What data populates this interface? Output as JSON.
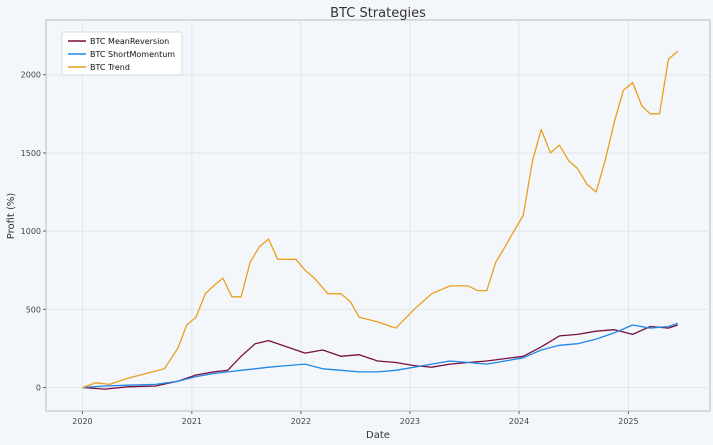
{
  "chart_data": {
    "type": "line",
    "title": "BTC Strategies",
    "xlabel": "Date",
    "ylabel": "Profit (%)",
    "xlim": [
      "2019-09-01",
      "2025-10-01"
    ],
    "ylim": [
      -150,
      2350
    ],
    "x_ticks": [
      "2020",
      "2021",
      "2022",
      "2023",
      "2024",
      "2025"
    ],
    "y_ticks": [
      0,
      500,
      1000,
      1500,
      2000
    ],
    "grid": true,
    "legend_position": "top-left",
    "series": [
      {
        "name": "BTC MeanReversion",
        "color": "#7a0f3f",
        "x": [
          "2020-01-01",
          "2020-03-15",
          "2020-06-01",
          "2020-09-01",
          "2020-11-15",
          "2021-01-15",
          "2021-03-15",
          "2021-05-01",
          "2021-06-15",
          "2021-08-01",
          "2021-09-15",
          "2021-11-15",
          "2022-01-15",
          "2022-03-15",
          "2022-05-15",
          "2022-07-15",
          "2022-09-15",
          "2022-11-15",
          "2023-01-15",
          "2023-03-15",
          "2023-05-15",
          "2023-07-15",
          "2023-09-15",
          "2023-11-15",
          "2024-01-15",
          "2024-03-15",
          "2024-05-15",
          "2024-07-15",
          "2024-09-15",
          "2024-11-15",
          "2025-01-15",
          "2025-03-15",
          "2025-05-15",
          "2025-06-15"
        ],
        "y": [
          0,
          -10,
          5,
          10,
          40,
          80,
          100,
          110,
          200,
          280,
          300,
          260,
          220,
          240,
          200,
          210,
          170,
          160,
          140,
          130,
          150,
          160,
          170,
          185,
          200,
          260,
          330,
          340,
          360,
          370,
          340,
          390,
          380,
          400
        ]
      },
      {
        "name": "BTC ShortMomentum",
        "color": "#1f88e5",
        "x": [
          "2020-01-01",
          "2020-03-15",
          "2020-06-01",
          "2020-09-01",
          "2020-11-15",
          "2021-01-15",
          "2021-03-15",
          "2021-05-01",
          "2021-06-15",
          "2021-08-01",
          "2021-09-15",
          "2021-11-15",
          "2022-01-15",
          "2022-03-15",
          "2022-05-15",
          "2022-07-15",
          "2022-09-15",
          "2022-11-15",
          "2023-01-15",
          "2023-03-15",
          "2023-05-15",
          "2023-07-15",
          "2023-09-15",
          "2023-11-15",
          "2024-01-15",
          "2024-03-15",
          "2024-05-15",
          "2024-07-15",
          "2024-09-15",
          "2024-11-15",
          "2025-01-15",
          "2025-03-15",
          "2025-05-15",
          "2025-06-15"
        ],
        "y": [
          0,
          10,
          15,
          20,
          40,
          70,
          90,
          100,
          110,
          120,
          130,
          140,
          150,
          120,
          110,
          100,
          100,
          110,
          130,
          150,
          170,
          160,
          150,
          170,
          190,
          240,
          270,
          280,
          310,
          350,
          400,
          380,
          390,
          410
        ]
      },
      {
        "name": "BTC Trend",
        "color": "#e8a020",
        "x": [
          "2020-01-01",
          "2020-02-15",
          "2020-04-01",
          "2020-06-01",
          "2020-08-01",
          "2020-10-01",
          "2020-11-15",
          "2020-12-15",
          "2021-01-15",
          "2021-02-15",
          "2021-03-15",
          "2021-04-15",
          "2021-05-15",
          "2021-06-15",
          "2021-07-15",
          "2021-08-15",
          "2021-09-15",
          "2021-10-15",
          "2021-11-15",
          "2021-12-15",
          "2022-01-15",
          "2022-02-15",
          "2022-04-01",
          "2022-05-15",
          "2022-06-15",
          "2022-07-15",
          "2022-09-15",
          "2022-11-15",
          "2023-01-15",
          "2023-03-15",
          "2023-05-15",
          "2023-07-15",
          "2023-08-15",
          "2023-09-15",
          "2023-10-15",
          "2023-11-15",
          "2023-12-15",
          "2024-01-15",
          "2024-02-15",
          "2024-03-15",
          "2024-04-15",
          "2024-05-15",
          "2024-06-15",
          "2024-07-15",
          "2024-08-15",
          "2024-09-15",
          "2024-10-15",
          "2024-11-15",
          "2024-12-15",
          "2025-01-15",
          "2025-02-15",
          "2025-03-15",
          "2025-04-15",
          "2025-05-15",
          "2025-06-15"
        ],
        "y": [
          0,
          30,
          20,
          60,
          90,
          120,
          250,
          400,
          450,
          600,
          650,
          700,
          580,
          580,
          800,
          900,
          950,
          820,
          820,
          820,
          750,
          700,
          600,
          600,
          550,
          450,
          420,
          380,
          500,
          600,
          650,
          650,
          620,
          620,
          800,
          900,
          1000,
          1100,
          1450,
          1650,
          1500,
          1550,
          1450,
          1400,
          1300,
          1250,
          1450,
          1700,
          1900,
          1950,
          1800,
          1750,
          1750,
          2100,
          2150
        ]
      }
    ]
  }
}
